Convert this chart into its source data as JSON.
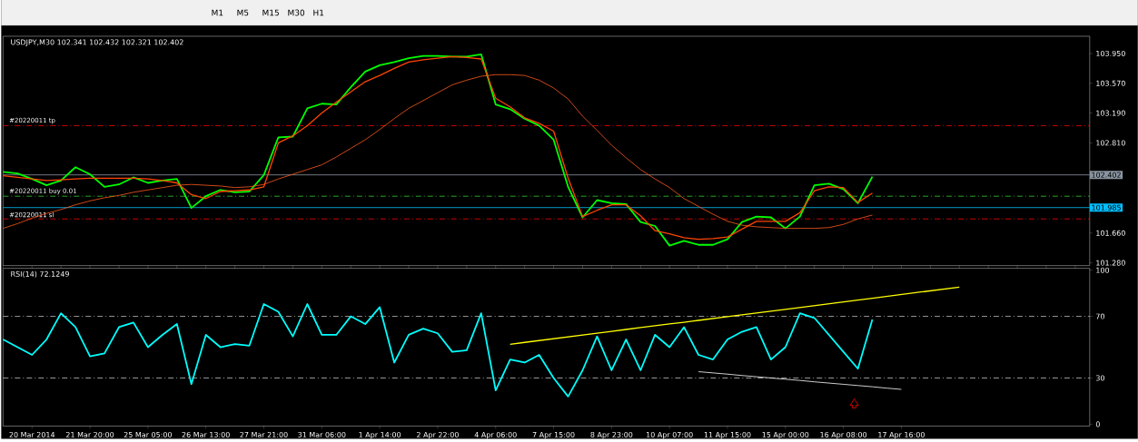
{
  "chart_data": [
    {
      "type": "line",
      "title": "USDJPY,M30 102.341 102.432 102.321 102.402",
      "annotations": [
        "M1",
        "M5",
        "M15",
        "M30",
        "H1"
      ],
      "categories": [
        null,
        null,
        null,
        null,
        null,
        null,
        null,
        null,
        null,
        null,
        null,
        null,
        null,
        null,
        null,
        null,
        null,
        null,
        null,
        null,
        null,
        null,
        null,
        null,
        null,
        null,
        null,
        null,
        null,
        null,
        null,
        null,
        null,
        null,
        null,
        null,
        null,
        null,
        null,
        null,
        null,
        null,
        null,
        null,
        null,
        null,
        null,
        null,
        null,
        null,
        null,
        null,
        null,
        null,
        null,
        null,
        null,
        null,
        null,
        null,
        null,
        null,
        null,
        null,
        null,
        null,
        null
      ],
      "ylim": [
        101.245,
        104.17
      ],
      "tick_labels": "y",
      "yticks": [
        {
          "value": 101.28,
          "label": "101.280"
        },
        {
          "value": 101.66,
          "label": "101.660"
        },
        {
          "value": 102.81,
          "label": "102.810"
        },
        {
          "value": 103.19,
          "label": "103.190"
        },
        {
          "value": 103.57,
          "label": "103.570"
        },
        {
          "value": 103.95,
          "label": "103.950"
        }
      ],
      "series": [
        {
          "color": "#00ff00",
          "values": [
            102.44,
            102.42,
            102.35,
            102.27,
            102.33,
            102.5,
            102.41,
            102.25,
            102.28,
            102.37,
            102.3,
            102.33,
            102.35,
            101.98,
            102.13,
            102.21,
            102.18,
            102.19,
            102.4,
            102.88,
            102.89,
            103.25,
            103.31,
            103.3,
            103.52,
            103.72,
            103.8,
            103.84,
            103.89,
            103.92,
            103.92,
            103.91,
            103.91,
            103.94,
            103.3,
            103.24,
            103.12,
            103.03,
            102.85,
            102.25,
            101.86,
            102.08,
            102.04,
            102.03,
            101.8,
            101.75,
            101.5,
            101.56,
            101.51,
            101.51,
            101.58,
            101.8,
            101.87,
            101.86,
            101.72,
            101.87,
            102.27,
            102.29,
            102.22,
            102.04,
            102.38,
            null,
            null,
            null,
            null,
            null,
            null
          ]
        },
        {
          "color": "#ff4500",
          "values": [
            102.39,
            102.37,
            102.35,
            102.33,
            102.34,
            102.35,
            102.36,
            102.36,
            102.36,
            102.36,
            102.35,
            102.33,
            102.3,
            102.15,
            102.1,
            102.19,
            102.2,
            102.21,
            102.25,
            102.81,
            102.9,
            103.03,
            103.19,
            103.33,
            103.46,
            103.59,
            103.67,
            103.76,
            103.84,
            103.87,
            103.89,
            103.91,
            103.9,
            103.88,
            103.38,
            103.27,
            103.13,
            103.06,
            102.96,
            102.36,
            101.87,
            101.95,
            102.02,
            102.02,
            101.88,
            101.69,
            101.65,
            101.6,
            101.58,
            101.59,
            101.61,
            101.71,
            101.81,
            101.81,
            101.81,
            101.92,
            102.2,
            102.25,
            102.24,
            102.05,
            102.17,
            null,
            null,
            null,
            null,
            null,
            null
          ]
        },
        {
          "color": "#ff5a1e",
          "values": [
            101.72,
            101.78,
            101.85,
            101.91,
            101.96,
            102.02,
            102.07,
            102.11,
            102.14,
            102.18,
            102.21,
            102.24,
            102.27,
            102.28,
            102.27,
            102.26,
            102.24,
            102.25,
            102.28,
            102.35,
            102.41,
            102.47,
            102.53,
            102.63,
            102.74,
            102.85,
            102.98,
            103.12,
            103.25,
            103.35,
            103.45,
            103.55,
            103.61,
            103.66,
            103.68,
            103.68,
            103.67,
            103.61,
            103.51,
            103.37,
            103.15,
            102.97,
            102.78,
            102.62,
            102.47,
            102.35,
            102.24,
            102.1,
            102.0,
            101.9,
            101.81,
            101.76,
            101.74,
            101.73,
            101.72,
            101.72,
            101.72,
            101.73,
            101.77,
            101.84,
            101.89,
            null,
            null,
            null,
            null,
            null,
            null
          ]
        }
      ],
      "ref_lines": [
        {
          "axis": "y",
          "value": 103.03,
          "label": "#20220011 tp",
          "color": "#ff0000",
          "line_style": "dashed"
        },
        {
          "axis": "y",
          "value": 102.402,
          "label": "102.402",
          "color": "#8a94a0",
          "line_style": "solid"
        },
        {
          "axis": "y",
          "value": 102.13,
          "label": "#20220011 buy 0.01",
          "color": "#32cd32",
          "line_style": "dashed"
        },
        {
          "axis": "y",
          "value": 101.985,
          "label": "101.985",
          "color": "#00bfff",
          "line_style": "solid"
        },
        {
          "axis": "y",
          "value": 101.84,
          "label": "#20220011 sl",
          "color": "#ff0000",
          "line_style": "dashed"
        }
      ]
    },
    {
      "type": "line",
      "title": "RSI(14) 72.1249",
      "categories": [
        null,
        null,
        "20 Mar 2014",
        null,
        null,
        null,
        "21 Mar 20:00",
        null,
        null,
        null,
        "25 Mar 05:00",
        null,
        null,
        null,
        "26 Mar 13:00",
        null,
        null,
        null,
        "27 Mar 21:00",
        null,
        null,
        null,
        "31 Mar 06:00",
        null,
        null,
        null,
        "1 Apr 14:00",
        null,
        null,
        null,
        "2 Apr 22:00",
        null,
        null,
        null,
        "4 Apr 06:00",
        null,
        null,
        null,
        "7 Apr 15:00",
        null,
        null,
        null,
        "8 Apr 23:00",
        null,
        null,
        null,
        "10 Apr 07:00",
        null,
        null,
        null,
        "11 Apr 15:00",
        null,
        null,
        null,
        "15 Apr 00:00",
        null,
        null,
        null,
        "16 Apr 08:00",
        null,
        null,
        null,
        "17 Apr 16:00",
        null,
        null,
        null,
        null
      ],
      "ylim": [
        -1.2,
        101.2
      ],
      "yticks": [
        0,
        30,
        70,
        100
      ],
      "series": [
        {
          "color": "#00ffff",
          "values": [
            55,
            50,
            45,
            55,
            72,
            63,
            44,
            46,
            63,
            66,
            50,
            58,
            65,
            26,
            58,
            50,
            52,
            51,
            78,
            73,
            57,
            78,
            58,
            58,
            70,
            65,
            76,
            40,
            58,
            62,
            59,
            47,
            48,
            72,
            22,
            42,
            40,
            45,
            30,
            18,
            35,
            57,
            35,
            55,
            35,
            58,
            50,
            63,
            45,
            42,
            55,
            60,
            63,
            42,
            50,
            72,
            69,
            58,
            47,
            36,
            68,
            null,
            null,
            null,
            null,
            null,
            null
          ]
        },
        {
          "color": "#ffff00",
          "values": [
            null,
            null,
            null,
            null,
            null,
            null,
            null,
            null,
            null,
            null,
            null,
            null,
            null,
            null,
            null,
            null,
            null,
            null,
            null,
            null,
            null,
            null,
            null,
            null,
            null,
            null,
            null,
            null,
            null,
            null,
            null,
            null,
            null,
            null,
            null,
            51.9,
            53.1,
            54.3,
            55.5,
            56.7,
            57.9,
            59.1,
            60.3,
            61.5,
            62.7,
            63.9,
            65.1,
            66.2,
            67.4,
            68.6,
            69.8,
            71.0,
            72.2,
            73.4,
            74.6,
            75.8,
            77.0,
            78.2,
            79.4,
            80.6,
            81.8,
            83.0,
            84.2,
            85.4,
            86.6,
            87.8,
            89.0
          ]
        },
        {
          "color": "#ffffff",
          "values": [
            null,
            null,
            null,
            null,
            null,
            null,
            null,
            null,
            null,
            null,
            null,
            null,
            null,
            null,
            null,
            null,
            null,
            null,
            null,
            null,
            null,
            null,
            null,
            null,
            null,
            null,
            null,
            null,
            null,
            null,
            null,
            null,
            null,
            null,
            null,
            null,
            null,
            null,
            null,
            null,
            null,
            null,
            null,
            null,
            null,
            null,
            null,
            null,
            34.1,
            33.3,
            32.5,
            31.6,
            30.8,
            30.0,
            29.2,
            28.4,
            27.5,
            26.7,
            25.9,
            25.1,
            24.3,
            23.4,
            22.6,
            null,
            null,
            null,
            null
          ]
        }
      ],
      "ref_lines": [
        {
          "axis": "y",
          "value": 70,
          "color": "#c0c0c0",
          "line_style": "dashed"
        },
        {
          "axis": "y",
          "value": 30,
          "color": "#c0c0c0",
          "line_style": "dashed"
        }
      ]
    }
  ]
}
